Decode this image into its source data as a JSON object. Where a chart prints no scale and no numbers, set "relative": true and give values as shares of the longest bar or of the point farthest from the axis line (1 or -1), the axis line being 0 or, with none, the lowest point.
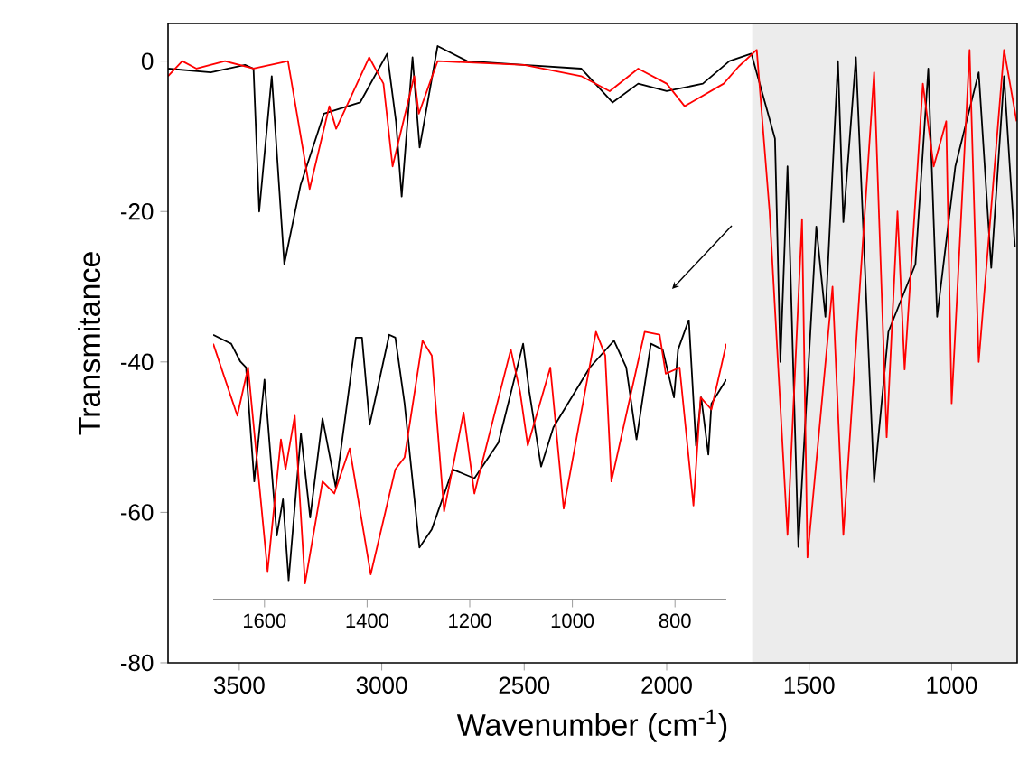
{
  "chart_data": [
    {
      "type": "line",
      "xlabel": "Wavenumber (cm$^{-1}$)",
      "ylabel": "Transmitance",
      "xlim": [
        3750,
        770
      ],
      "ylim": [
        -80,
        5
      ],
      "xticks": [
        3500,
        3000,
        2500,
        2000,
        1500,
        1000
      ],
      "yticks": [
        -80,
        -60,
        -40,
        -20,
        0
      ],
      "bands": [
        {
          "axis": "x",
          "from": 1700,
          "to": 770,
          "color": "#ececec"
        }
      ],
      "series": [
        {
          "color": "#000000",
          "x": [
            3750,
            3600,
            3480,
            3450,
            3430,
            3386,
            3342,
            3285,
            3203,
            3076,
            2981,
            2950,
            2930,
            2892,
            2867,
            2804,
            2700,
            2500,
            2300,
            2190,
            2100,
            2000,
            1873,
            1780,
            1703,
            1620,
            1601,
            1576,
            1538,
            1475,
            1443,
            1399,
            1380,
            1336,
            1272,
            1222,
            1127,
            1082,
            1051,
            987,
            905,
            861,
            816,
            778
          ],
          "values": [
            -1,
            -1.5,
            -0.5,
            -1,
            -20,
            -2,
            -27,
            -16.5,
            -7,
            -5.5,
            1,
            -8,
            -18,
            0.5,
            -11.5,
            2,
            0,
            -0.5,
            -1,
            -5.5,
            -3,
            -4,
            -3,
            0,
            1,
            -10.3,
            -40,
            -14,
            -64.6,
            -22,
            -34,
            0,
            -21.4,
            0.5,
            -56,
            -36,
            -27,
            -1,
            -34,
            -14,
            -1.5,
            -27.5,
            -2,
            -24.7
          ]
        },
        {
          "color": "#ff0000",
          "x": [
            3750,
            3700,
            3650,
            3550,
            3450,
            3329,
            3253,
            3184,
            3160,
            3044,
            2994,
            2962,
            2886,
            2870,
            2804,
            2500,
            2300,
            2200,
            2100,
            2000,
            1937,
            1800,
            1747,
            1684,
            1639,
            1576,
            1525,
            1506,
            1418,
            1380,
            1272,
            1228,
            1190,
            1165,
            1101,
            1063,
            1019,
            1000,
            937,
            905,
            816,
            772
          ],
          "values": [
            -2,
            0,
            -1,
            0,
            -1,
            0,
            -17,
            -6,
            -9,
            0.5,
            -3,
            -14,
            -2,
            -7,
            0,
            -0.5,
            -2,
            -4,
            -1,
            -3,
            -6,
            -3,
            -0.7,
            1.5,
            -20,
            -63,
            -21,
            -66,
            -30,
            -63,
            -1.5,
            -50,
            -20,
            -41,
            -3,
            -14,
            -8,
            -45.5,
            1.5,
            -40,
            1.5,
            -8
          ]
        }
      ]
    },
    {
      "type": "line",
      "relative": true,
      "xlim": [
        1700,
        700
      ],
      "xticks": [
        1600,
        1400,
        1200,
        1000,
        800
      ],
      "series": [
        {
          "color": "#000000",
          "x": [
            1700,
            1665,
            1647,
            1636,
            1620,
            1600,
            1576,
            1564,
            1553,
            1529,
            1511,
            1487,
            1461,
            1422,
            1410,
            1395,
            1357,
            1345,
            1327,
            1298,
            1274,
            1233,
            1191,
            1144,
            1096,
            1084,
            1061,
            1037,
            966,
            919,
            895,
            875,
            847,
            824,
            802,
            794,
            773,
            759,
            749,
            735,
            729,
            700
          ],
          "values": [
            0.946,
            0.914,
            0.85,
            0.829,
            0.422,
            0.786,
            0.229,
            0.358,
            0.069,
            0.593,
            0.293,
            0.647,
            0.4,
            0.936,
            0.936,
            0.625,
            0.946,
            0.936,
            0.7,
            0.186,
            0.251,
            0.465,
            0.433,
            0.561,
            0.914,
            0.743,
            0.475,
            0.615,
            0.829,
            0.925,
            0.829,
            0.572,
            0.914,
            0.893,
            0.722,
            0.893,
            1.0,
            0.55,
            0.722,
            0.518,
            0.7,
            0.786
          ]
        },
        {
          "color": "#ff0000",
          "x": [
            1700,
            1653,
            1632,
            1594,
            1568,
            1559,
            1541,
            1521,
            1487,
            1464,
            1434,
            1393,
            1345,
            1327,
            1292,
            1274,
            1250,
            1212,
            1191,
            1120,
            1102,
            1087,
            1043,
            1017,
            954,
            936,
            924,
            859,
            830,
            818,
            791,
            764,
            750,
            729,
            700
          ],
          "values": [
            0.914,
            0.657,
            0.829,
            0.101,
            0.572,
            0.465,
            0.657,
            0.058,
            0.422,
            0.379,
            0.54,
            0.09,
            0.465,
            0.508,
            0.925,
            0.872,
            0.315,
            0.668,
            0.379,
            0.893,
            0.743,
            0.55,
            0.829,
            0.325,
            0.957,
            0.872,
            0.422,
            0.957,
            0.946,
            0.807,
            0.829,
            0.336,
            0.722,
            0.679,
            0.914
          ]
        }
      ]
    }
  ]
}
